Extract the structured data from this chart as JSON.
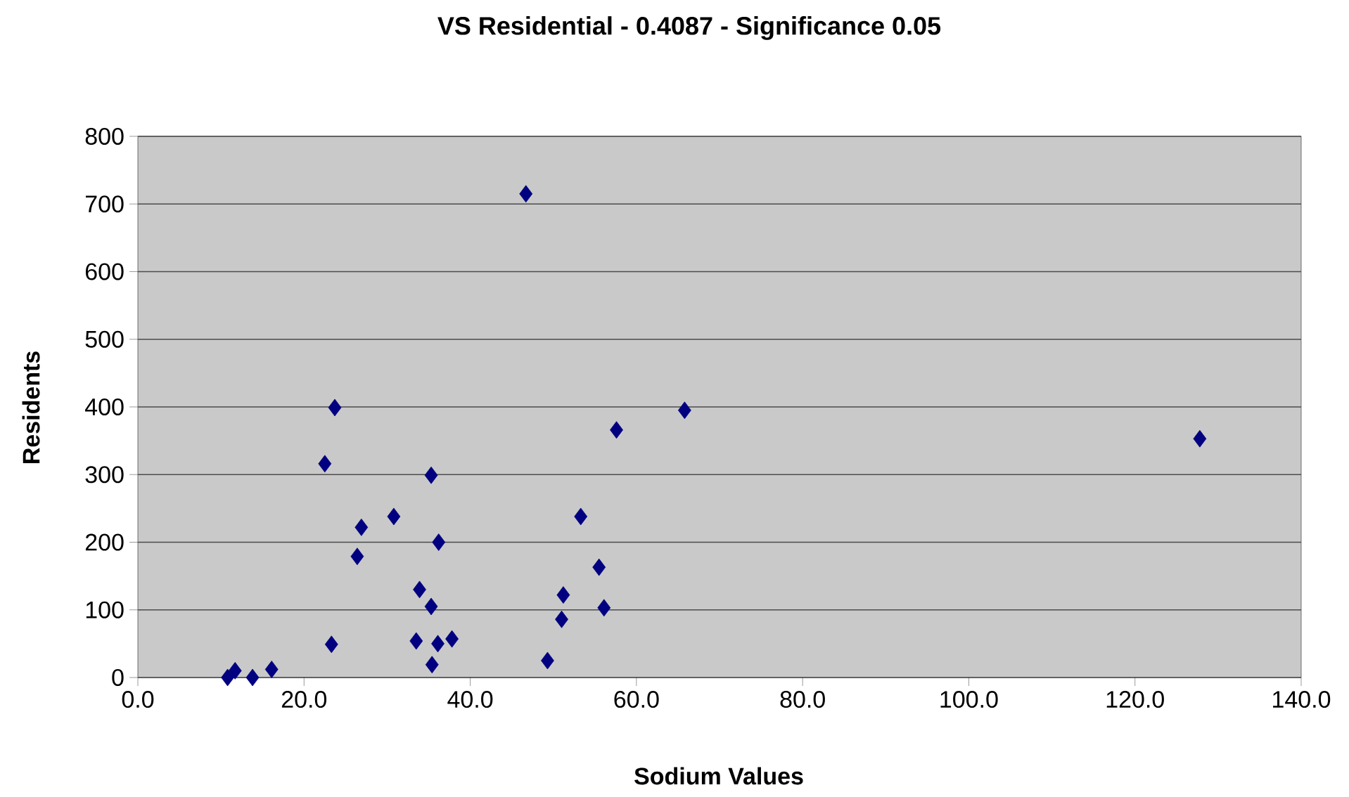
{
  "chart_data": {
    "type": "scatter",
    "title": "VS Residential - 0.4087 - Significance 0.05",
    "xlabel": "Sodium Values",
    "ylabel": "Residents",
    "xlim": [
      0,
      140
    ],
    "xticks": [
      {
        "value": 0,
        "label": "0.0"
      },
      {
        "value": 20,
        "label": "20.0"
      },
      {
        "value": 40,
        "label": "40.0"
      },
      {
        "value": 60,
        "label": "60.0"
      },
      {
        "value": 80,
        "label": "80.0"
      },
      {
        "value": 100,
        "label": "100.0"
      },
      {
        "value": 120,
        "label": "120.0"
      },
      {
        "value": 140,
        "label": "140.0"
      }
    ],
    "ylim": [
      0,
      800
    ],
    "yticks": [
      0,
      100,
      200,
      300,
      400,
      500,
      600,
      700,
      800
    ],
    "grid": "y",
    "marker": "diamond",
    "series": [
      {
        "color": "#000080",
        "x": [
          10.8,
          11.7,
          13.8,
          16.1,
          22.5,
          23.3,
          23.7,
          26.4,
          26.9,
          30.8,
          33.5,
          33.9,
          35.3,
          35.3,
          35.4,
          36.1,
          36.2,
          37.8,
          46.7,
          49.3,
          51.0,
          51.2,
          53.3,
          55.5,
          56.1,
          57.6,
          65.8,
          127.8
        ],
        "values": [
          0,
          10,
          0,
          12,
          316,
          49,
          399,
          179,
          222,
          238,
          54,
          130,
          299,
          105,
          19,
          50,
          200,
          57,
          715,
          25,
          86,
          122,
          238,
          163,
          103,
          366,
          395,
          353
        ]
      }
    ]
  }
}
